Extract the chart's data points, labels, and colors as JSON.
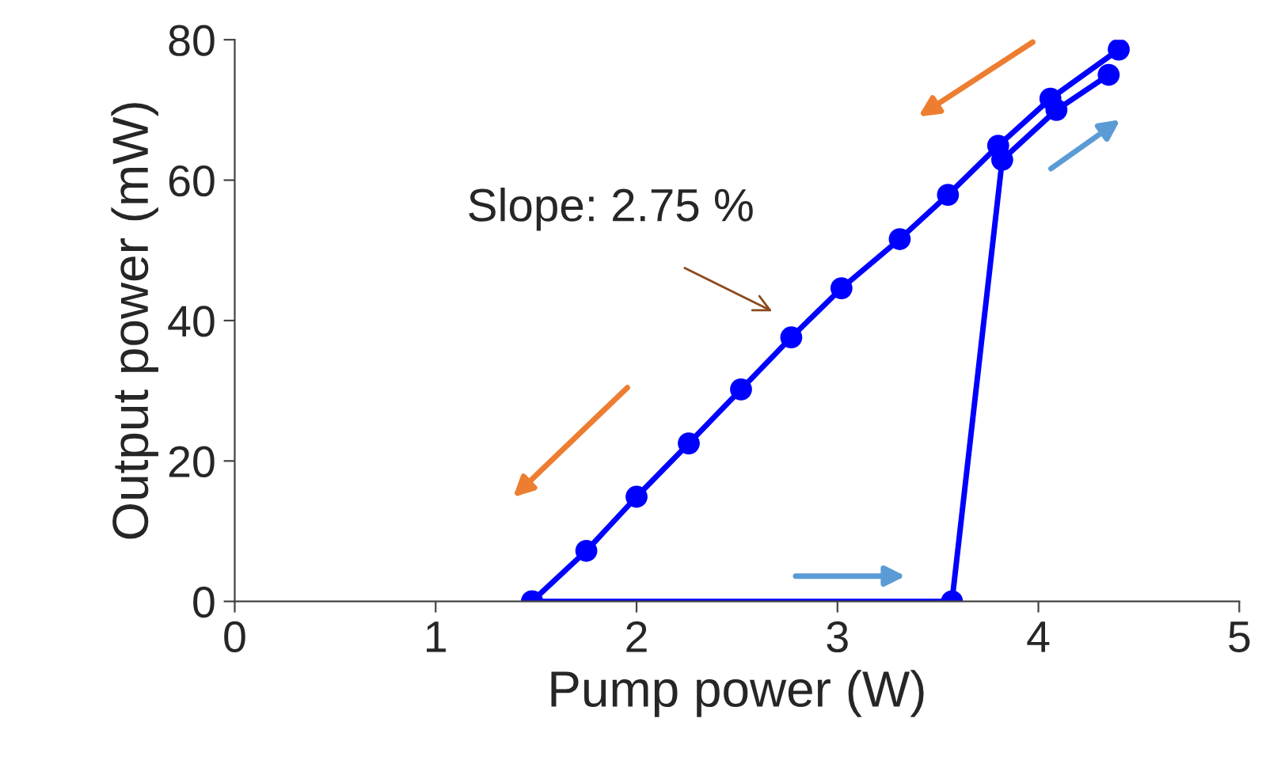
{
  "chart_data": {
    "type": "line",
    "xlabel": "Pump power (W)",
    "ylabel": "Output power (mW)",
    "xlim": [
      0,
      5
    ],
    "ylim": [
      0,
      80
    ],
    "xticks": [
      0,
      1,
      2,
      3,
      4,
      5
    ],
    "yticks": [
      0,
      20,
      40,
      60,
      80
    ],
    "grid": false,
    "marker": "circle",
    "line_style": "solid",
    "series": [
      {
        "color": "#0000ff",
        "x": [
          4.4,
          4.06,
          3.8,
          3.55,
          3.31,
          3.02,
          2.77,
          2.52,
          2.26,
          2.0,
          1.75,
          1.48
        ],
        "values": [
          78.6,
          71.6,
          64.9,
          57.9,
          51.6,
          44.6,
          37.6,
          30.2,
          22.5,
          14.9,
          7.2,
          0
        ]
      },
      {
        "color": "#0000ff",
        "x": [
          1.48,
          3.57,
          3.82,
          4.09,
          4.35
        ],
        "values": [
          0,
          0,
          62.9,
          70.0,
          75.0
        ]
      }
    ],
    "annotations": [
      "Slope: 2.75 %"
    ]
  }
}
